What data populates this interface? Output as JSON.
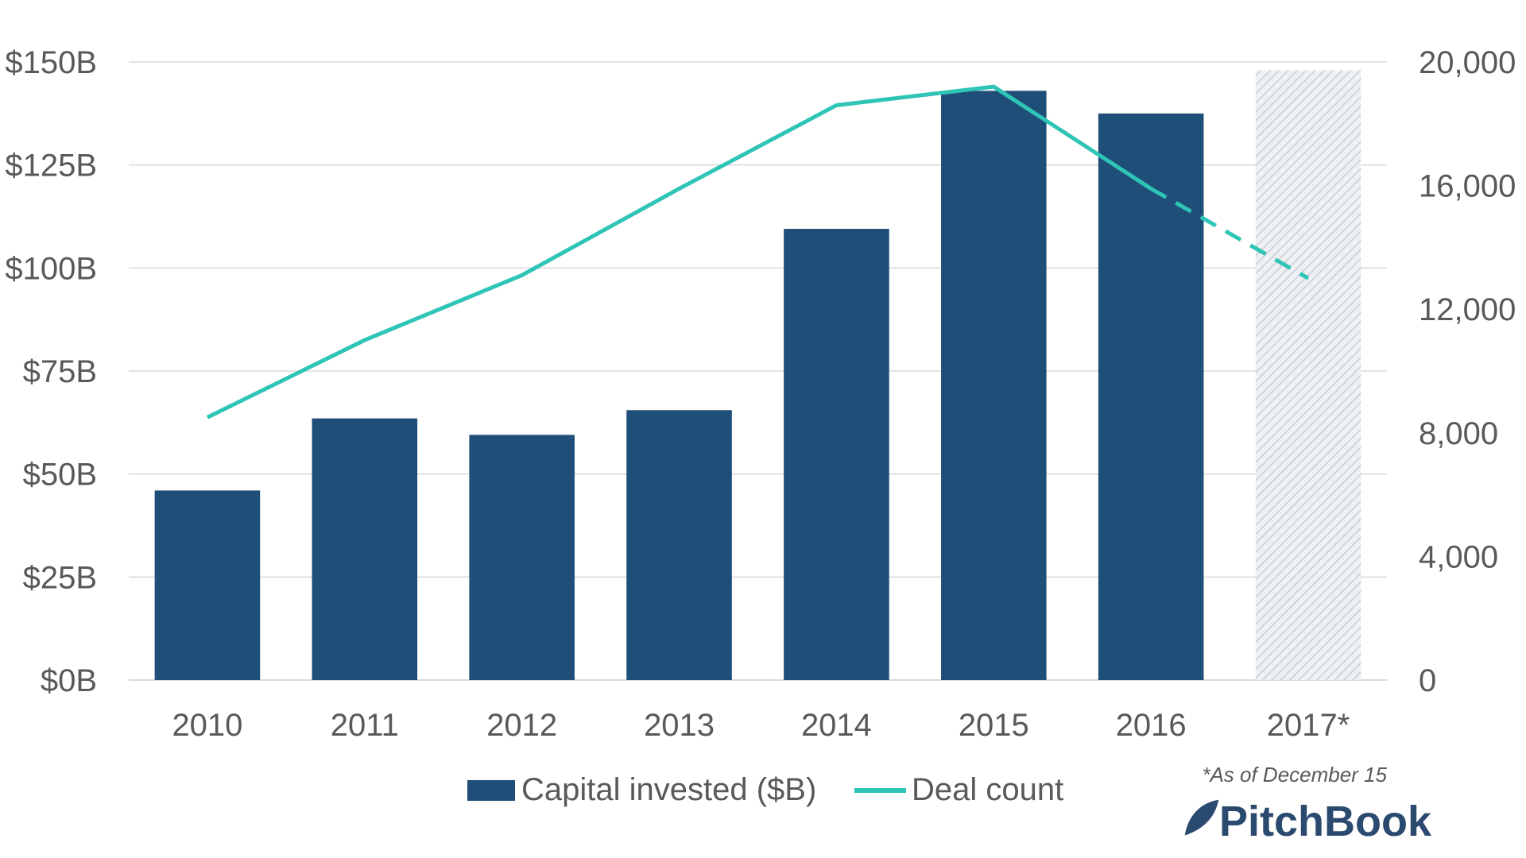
{
  "chart_data": {
    "type": "bar",
    "categories": [
      "2010",
      "2011",
      "2012",
      "2013",
      "2014",
      "2015",
      "2016",
      "2017*"
    ],
    "series": [
      {
        "name": "Capital invested ($B)",
        "type": "bar",
        "axis": "left",
        "values": [
          46,
          63.5,
          59.5,
          65.5,
          109.5,
          143,
          137.5,
          148
        ],
        "colors": [
          "#1f4e79",
          "#1f4e79",
          "#1f4e79",
          "#1f4e79",
          "#1f4e79",
          "#1f4e79",
          "#1f4e79",
          "hatched-light-gray"
        ]
      },
      {
        "name": "Deal count",
        "type": "line",
        "axis": "right",
        "color": "#2ec4b6",
        "values": [
          8500,
          11000,
          13100,
          15900,
          18600,
          19200,
          15900,
          13000
        ],
        "dashed_from_index": 6
      }
    ],
    "y_left": {
      "ylim": [
        0,
        150
      ],
      "ticks": [
        0,
        25,
        50,
        75,
        100,
        125,
        150
      ],
      "tick_labels": [
        "$0B",
        "$25B",
        "$50B",
        "$75B",
        "$100B",
        "$125B",
        "$150B"
      ]
    },
    "y_right": {
      "ylim": [
        0,
        20000
      ],
      "ticks": [
        0,
        4000,
        8000,
        12000,
        16000,
        20000
      ],
      "tick_labels": [
        "0",
        "4,000",
        "8,000",
        "12,000",
        "16,000",
        "20,000"
      ]
    },
    "grid": true,
    "legend": {
      "placement": "bottom",
      "entries": [
        "Capital invested ($B)",
        "Deal count"
      ]
    },
    "footnote": "*As of December 15",
    "brand": "PitchBook",
    "colors": {
      "bar": "#1f4e79",
      "line": "#2ec4b6",
      "grid": "#d9d9d9",
      "text": "#595959",
      "hatch": "#c9ced6"
    }
  }
}
